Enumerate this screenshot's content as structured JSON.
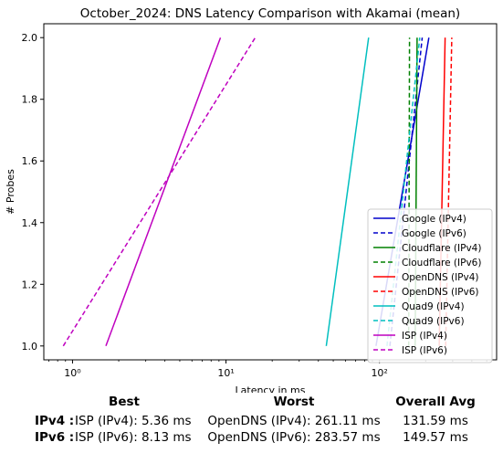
{
  "chart_data": {
    "type": "line",
    "title": "October_2024: DNS Latency Comparison with Akamai (mean)",
    "xlabel": "Latency in ms",
    "ylabel": "# Probes",
    "xscale": "log",
    "xlim": [
      0.65,
      580
    ],
    "ylim": [
      0.955,
      2.045
    ],
    "xticks": [
      1,
      10,
      100
    ],
    "xtick_labels": [
      "10⁰",
      "10¹",
      "10²"
    ],
    "yticks": [
      1.0,
      1.2,
      1.4,
      1.6,
      1.8,
      2.0
    ],
    "ytick_labels": [
      "1.0",
      "1.2",
      "1.4",
      "1.6",
      "1.8",
      "2.0"
    ],
    "grid": false,
    "legend_position": "lower-right",
    "series": [
      {
        "name": "Google (IPv4)",
        "color": "#0000cc",
        "dash": "solid",
        "x": [
          95,
          210
        ],
        "y": [
          1.0,
          2.0
        ]
      },
      {
        "name": "Google (IPv6)",
        "color": "#0000cc",
        "dash": "dashed",
        "x": [
          117,
          190
        ],
        "y": [
          1.0,
          2.0
        ]
      },
      {
        "name": "Cloudflare (IPv4)",
        "color": "#008000",
        "dash": "solid",
        "x": [
          171,
          176
        ],
        "y": [
          1.0,
          2.0
        ]
      },
      {
        "name": "Cloudflare (IPv6)",
        "color": "#008000",
        "dash": "dashed",
        "x": [
          155,
          157
        ],
        "y": [
          1.0,
          2.0
        ]
      },
      {
        "name": "OpenDNS (IPv4)",
        "color": "#ff0000",
        "dash": "solid",
        "x": [
          245,
          268
        ],
        "y": [
          1.0,
          2.0
        ]
      },
      {
        "name": "OpenDNS (IPv6)",
        "color": "#ff0000",
        "dash": "dashed",
        "x": [
          270,
          296
        ],
        "y": [
          1.0,
          2.0
        ]
      },
      {
        "name": "Quad9 (IPv4)",
        "color": "#00bfbf",
        "dash": "solid",
        "x": [
          45,
          85
        ],
        "y": [
          1.0,
          2.0
        ]
      },
      {
        "name": "Quad9 (IPv6)",
        "color": "#00bfbf",
        "dash": "dashed",
        "x": [
          112,
          183
        ],
        "y": [
          1.0,
          2.0
        ]
      },
      {
        "name": "ISP (IPv4)",
        "color": "#bf00bf",
        "dash": "solid",
        "x": [
          1.65,
          9.2
        ],
        "y": [
          1.0,
          2.0
        ]
      },
      {
        "name": "ISP (IPv6)",
        "color": "#bf00bf",
        "dash": "dashed",
        "x": [
          0.87,
          15.5
        ],
        "y": [
          1.0,
          2.0
        ]
      }
    ]
  },
  "summary": {
    "headers": {
      "best": "Best",
      "worst": "Worst",
      "avg": "Overall Avg"
    },
    "rows": [
      {
        "label": "IPv4 :",
        "best": "ISP (IPv4): 5.36 ms",
        "worst": "OpenDNS (IPv4): 261.11 ms",
        "avg": "131.59 ms"
      },
      {
        "label": "IPv6 :",
        "best": "ISP (IPv6): 8.13 ms",
        "worst": "OpenDNS (IPv6): 283.57 ms",
        "avg": "149.57 ms"
      }
    ]
  }
}
